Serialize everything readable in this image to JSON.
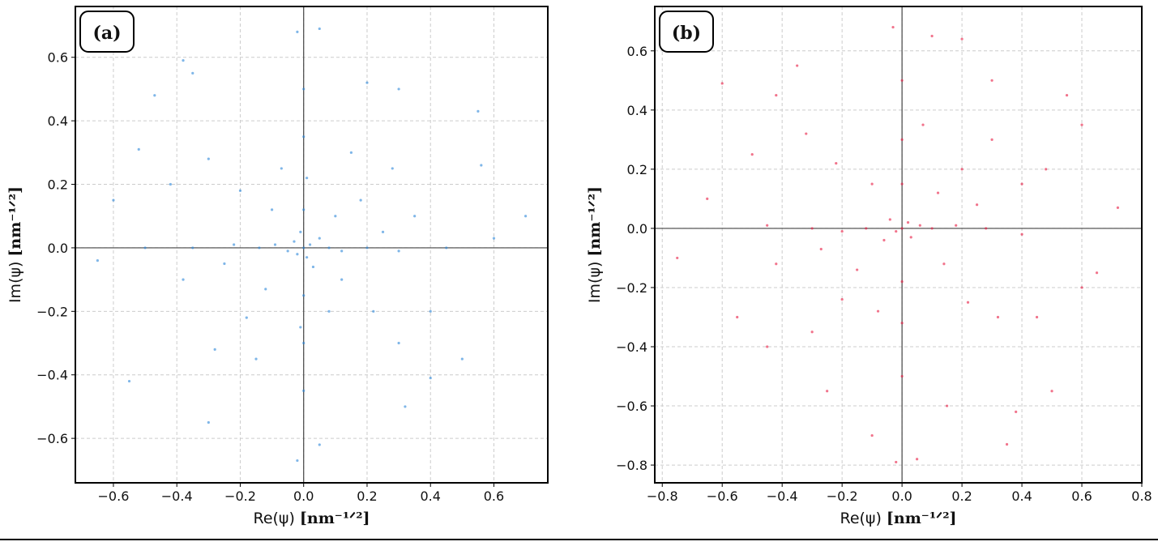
{
  "chart_data": [
    {
      "type": "scatter",
      "panel_label": "(a)",
      "xlabel": "Re(ψ)",
      "xlabel_unit": "[nm⁻¹ᐟ²]",
      "ylabel": "Im(ψ)",
      "ylabel_unit": "[nm⁻¹ᐟ²]",
      "color": "#2a86d8",
      "grid": true,
      "zero_lines": true,
      "xlim": [
        -0.72,
        0.77
      ],
      "ylim": [
        -0.74,
        0.76
      ],
      "xticks": [
        {
          "value": -0.6,
          "label": "−0.6"
        },
        {
          "value": -0.4,
          "label": "−0.4"
        },
        {
          "value": -0.2,
          "label": "−0.2"
        },
        {
          "value": 0,
          "label": "0.0"
        },
        0.2,
        0.4,
        0.6
      ],
      "yticks": [
        {
          "value": -0.6,
          "label": "−0.6"
        },
        {
          "value": -0.4,
          "label": "−0.4"
        },
        {
          "value": -0.2,
          "label": "−0.2"
        },
        {
          "value": 0,
          "label": "0.0"
        },
        0.2,
        0.4,
        0.6
      ],
      "x": [
        0,
        0.02,
        -0.03,
        0.01,
        -0.02,
        0.05,
        -0.05,
        0.03,
        -0.01,
        0.08,
        -0.09,
        0.12,
        -0.14,
        0.2,
        -0.22,
        0.3,
        -0.35,
        0.45,
        -0.5,
        0,
        0,
        0.01,
        -0.01,
        0,
        0,
        0,
        0,
        0.1,
        -0.1,
        0.12,
        -0.12,
        0.18,
        -0.2,
        0.22,
        -0.18,
        0.28,
        -0.3,
        0.3,
        -0.28,
        0.15,
        -0.15,
        0.35,
        -0.38,
        0.4,
        -0.42,
        0.55,
        -0.47,
        0.6,
        -0.65,
        0.7,
        -0.6,
        0.05,
        -0.02,
        0.05,
        -0.02,
        0.3,
        -0.35,
        0.32,
        -0.3,
        0.5,
        -0.55,
        0.56,
        -0.52,
        0.2,
        0.4,
        -0.38,
        0.08,
        -0.07,
        0.25,
        -0.25
      ],
      "y": [
        0,
        0.01,
        0.02,
        -0.03,
        -0.02,
        0.03,
        -0.01,
        -0.06,
        0.05,
        0,
        0.01,
        -0.01,
        0,
        0,
        0.01,
        -0.01,
        0,
        0,
        0,
        0.12,
        -0.15,
        0.22,
        -0.25,
        0.35,
        -0.3,
        0.5,
        -0.45,
        0.1,
        0.12,
        -0.1,
        -0.13,
        0.15,
        0.18,
        -0.2,
        -0.22,
        0.25,
        0.28,
        -0.3,
        -0.32,
        0.3,
        -0.35,
        0.1,
        -0.1,
        -0.2,
        0.2,
        0.43,
        0.48,
        0.03,
        -0.04,
        0.1,
        0.15,
        0.69,
        0.68,
        -0.62,
        -0.67,
        0.5,
        0.55,
        -0.5,
        -0.55,
        -0.35,
        -0.42,
        0.26,
        0.31,
        0.52,
        -0.41,
        0.59,
        -0.2,
        0.25,
        0.05,
        -0.05
      ]
    },
    {
      "type": "scatter",
      "panel_label": "(b)",
      "xlabel": "Re(ψ)",
      "xlabel_unit": "[nm⁻¹ᐟ²]",
      "ylabel": "Im(ψ)",
      "ylabel_unit": "[nm⁻¹ᐟ²]",
      "color": "#e8173f",
      "grid": true,
      "zero_lines": true,
      "xlim": [
        -0.825,
        0.8
      ],
      "ylim": [
        -0.86,
        0.75
      ],
      "xticks": [
        {
          "value": -0.8,
          "label": "−0.8"
        },
        {
          "value": -0.6,
          "label": "−0.6"
        },
        {
          "value": -0.4,
          "label": "−0.4"
        },
        {
          "value": -0.2,
          "label": "−0.2"
        },
        {
          "value": 0,
          "label": "0.0"
        },
        0.2,
        0.4,
        0.6,
        0.8
      ],
      "yticks": [
        {
          "value": -0.8,
          "label": "−0.8"
        },
        {
          "value": -0.6,
          "label": "−0.6"
        },
        {
          "value": -0.4,
          "label": "−0.4"
        },
        {
          "value": -0.2,
          "label": "−0.2"
        },
        {
          "value": 0,
          "label": "0.0"
        },
        0.2,
        0.4,
        0.6
      ],
      "x": [
        0,
        0.02,
        -0.02,
        0.03,
        -0.04,
        0.06,
        -0.06,
        0.1,
        -0.12,
        0.18,
        -0.2,
        0.28,
        -0.3,
        0.4,
        -0.45,
        0,
        0,
        0,
        0,
        0,
        0,
        0.12,
        -0.1,
        0.14,
        -0.15,
        0.2,
        -0.22,
        0.22,
        -0.2,
        0.3,
        -0.32,
        0.32,
        -0.3,
        0.4,
        -0.42,
        0.45,
        -0.5,
        0.6,
        -0.6,
        0.72,
        -0.75,
        0.5,
        -0.55,
        0.1,
        -0.03,
        0.05,
        -0.02,
        0.35,
        -0.35,
        0.2,
        -0.1,
        0.65,
        -0.65,
        0.55,
        0.3,
        -0.25,
        0.15,
        -0.42,
        0.38,
        0.07,
        -0.08,
        0.25,
        -0.27,
        0.6,
        -0.45,
        0.48
      ],
      "y": [
        0,
        0.02,
        -0.01,
        -0.03,
        0.03,
        0.01,
        -0.04,
        0,
        0,
        0.01,
        -0.01,
        0,
        0,
        -0.02,
        0.01,
        0.15,
        -0.18,
        0.3,
        -0.32,
        0.5,
        -0.5,
        0.12,
        0.15,
        -0.12,
        -0.14,
        0.2,
        0.22,
        -0.25,
        -0.24,
        0.3,
        0.32,
        -0.3,
        -0.35,
        0.15,
        -0.12,
        -0.3,
        0.25,
        0.35,
        0.49,
        0.07,
        -0.1,
        -0.55,
        -0.3,
        0.65,
        0.68,
        -0.78,
        -0.79,
        -0.73,
        0.55,
        0.64,
        -0.7,
        -0.15,
        0.1,
        0.45,
        0.5,
        -0.55,
        -0.6,
        0.45,
        -0.62,
        0.35,
        -0.28,
        0.08,
        -0.07,
        -0.2,
        -0.4,
        0.2
      ]
    }
  ]
}
